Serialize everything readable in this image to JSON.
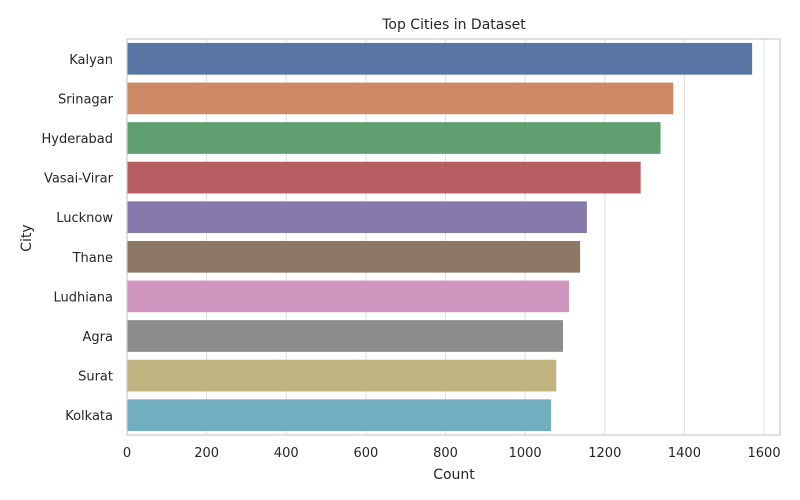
{
  "chart_data": {
    "type": "bar",
    "orientation": "horizontal",
    "title": "Top Cities in Dataset",
    "xlabel": "Count",
    "ylabel": "City",
    "xlim": [
      0,
      1640
    ],
    "xticks": [
      0,
      200,
      400,
      600,
      800,
      1000,
      1200,
      1400,
      1600
    ],
    "grid": true,
    "categories": [
      "Kalyan",
      "Srinagar",
      "Hyderabad",
      "Vasai-Virar",
      "Lucknow",
      "Thane",
      "Ludhiana",
      "Agra",
      "Surat",
      "Kolkata"
    ],
    "values": [
      1570,
      1372,
      1340,
      1290,
      1155,
      1138,
      1110,
      1095,
      1078,
      1065
    ],
    "colors": [
      "#5875a4",
      "#cc8963",
      "#5f9e6e",
      "#b55d60",
      "#857aab",
      "#8d7866",
      "#d095bf",
      "#8c8c8c",
      "#c1b37f",
      "#71aec0"
    ]
  }
}
